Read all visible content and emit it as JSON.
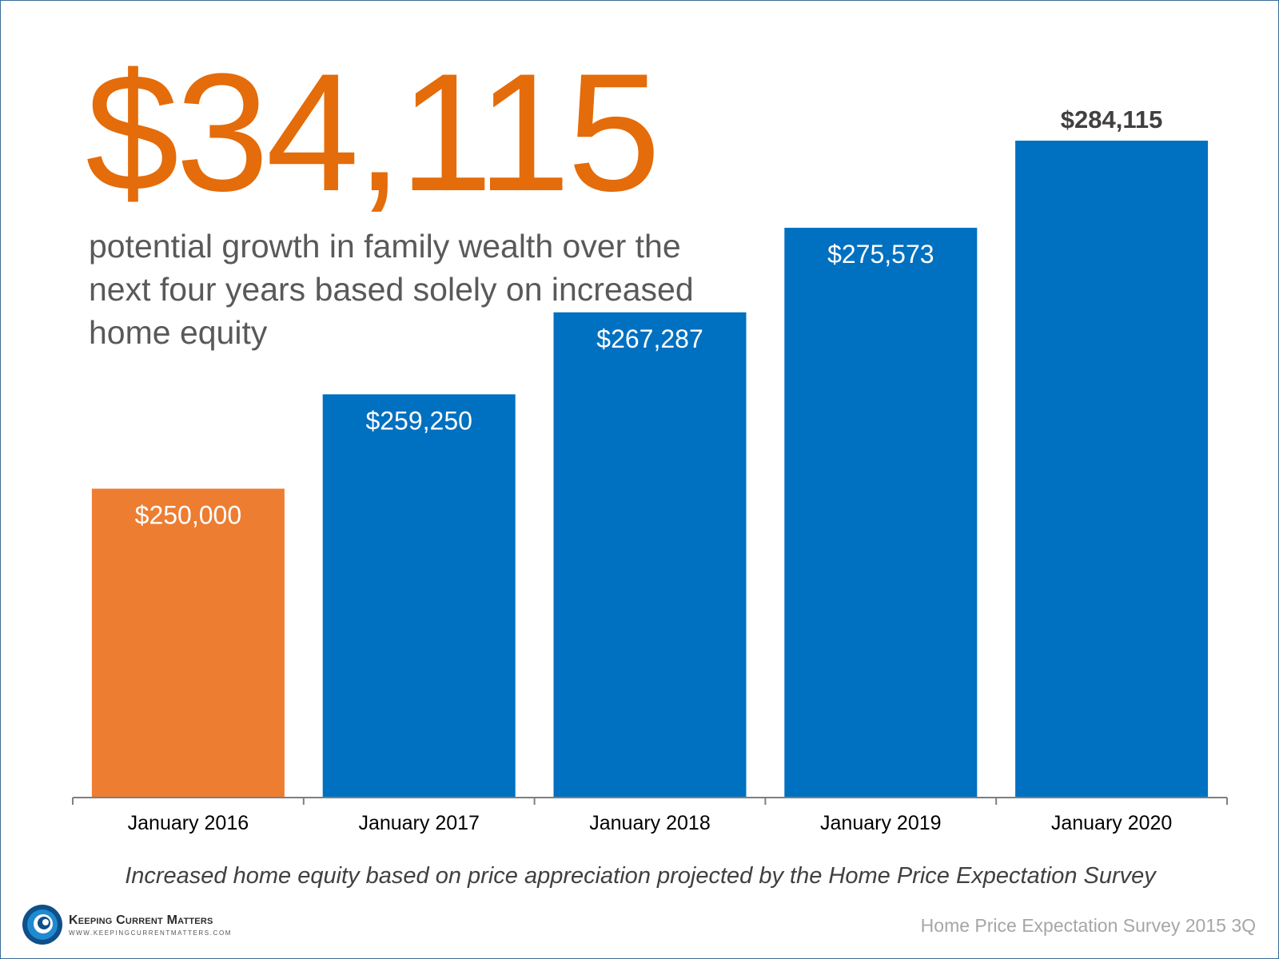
{
  "headline": "$34,115",
  "subheadline": "potential growth in family wealth over the next four years based solely on increased home equity",
  "footnote": "Increased home equity based on price appreciation projected by the Home Price Expectation Survey",
  "source": "Home Price Expectation Survey 2015 3Q",
  "logo": {
    "name": "Keeping Current Matters",
    "url": "WWW.KEEPINGCURRENTMATTERS.COM",
    "icon": "swirl-logo-icon"
  },
  "colors": {
    "highlight": "#ed7d31",
    "bar": "#0070c0",
    "headline": "#e46c0a",
    "text": "#595959"
  },
  "chart_data": {
    "type": "bar",
    "categories": [
      "January 2016",
      "January 2017",
      "January 2018",
      "January 2019",
      "January 2020"
    ],
    "values": [
      250000,
      259250,
      267287,
      275573,
      284115
    ],
    "labels": [
      "$250,000",
      "$259,250",
      "$267,287",
      "$275,573",
      "$284,115"
    ],
    "highlight_index": 0,
    "ylim": [
      219724,
      284115
    ],
    "grid": false,
    "legend": "none"
  }
}
